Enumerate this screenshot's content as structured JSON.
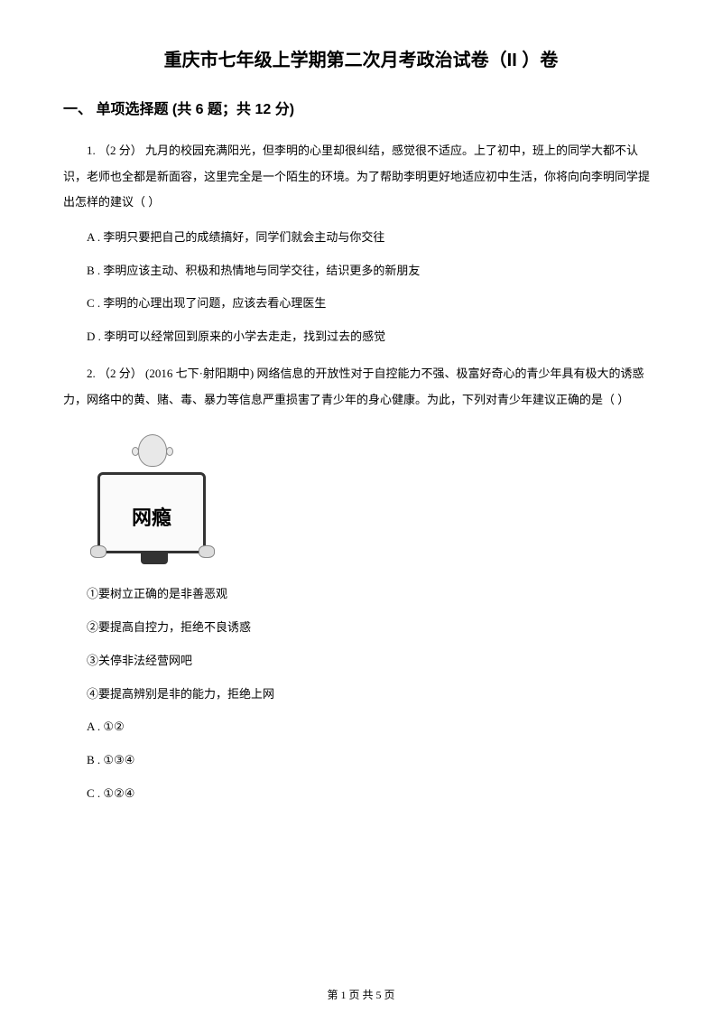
{
  "title": "重庆市七年级上学期第二次月考政治试卷（II ）卷",
  "section": {
    "heading": "一、 单项选择题 (共 6 题；共 12 分)"
  },
  "q1": {
    "stem": "1.  （2 分） 九月的校园充满阳光，但李明的心里却很纠结，感觉很不适应。上了初中，班上的同学大都不认识，老师也全都是新面容，这里完全是一个陌生的环境。为了帮助李明更好地适应初中生活，你将向向李明同学提出怎样的建议（    ）",
    "optA": "A . 李明只要把自己的成绩搞好，同学们就会主动与你交往",
    "optB": "B . 李明应该主动、积极和热情地与同学交往，结识更多的新朋友",
    "optC": "C . 李明的心理出现了问题，应该去看心理医生",
    "optD": "D . 李明可以经常回到原来的小学去走走，找到过去的感觉"
  },
  "q2": {
    "stem": "2.  （2 分） (2016 七下·射阳期中)  网络信息的开放性对于自控能力不强、极富好奇心的青少年具有极大的诱惑力，网络中的黄、赌、毒、暴力等信息严重损害了青少年的身心健康。为此，下列对青少年建议正确的是（    ）",
    "imageLabel": "网瘾",
    "s1": "①要树立正确的是非善恶观",
    "s2": "②要提高自控力，拒绝不良诱惑",
    "s3": "③关停非法经营网吧",
    "s4": "④要提高辨别是非的能力，拒绝上网",
    "optA": "A . ①②",
    "optB": "B . ①③④",
    "optC": "C . ①②④"
  },
  "footer": "第 1 页 共 5 页"
}
